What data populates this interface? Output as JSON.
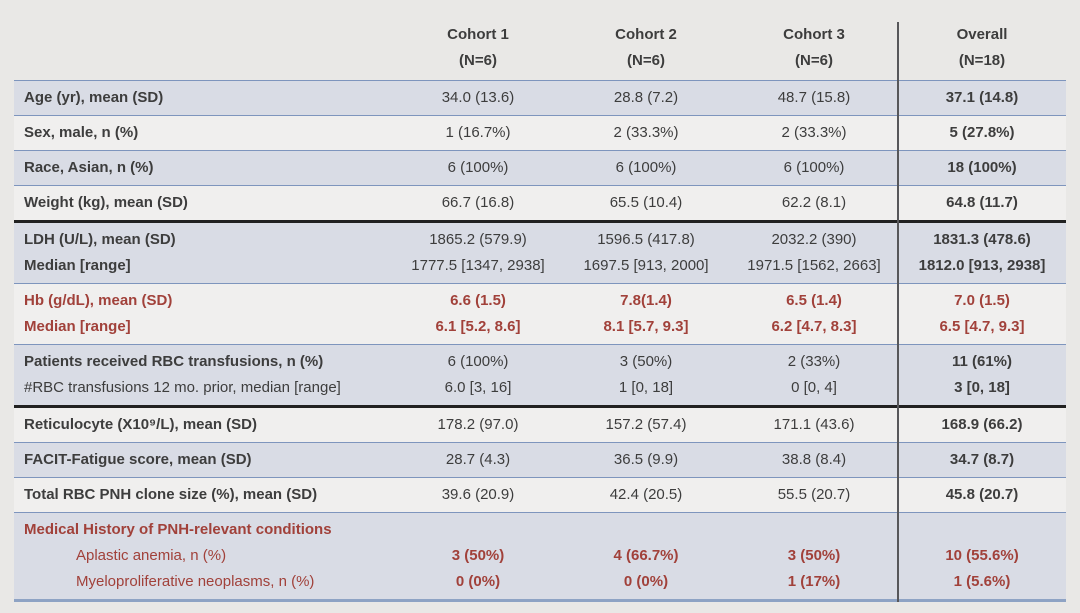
{
  "colors": {
    "page_background": "#e9e8e6",
    "shaded_row": "#d9dce5",
    "plain_row": "#f0efee",
    "thin_border": "#7e95bd",
    "thick_border": "#212121",
    "bottom_border": "#8ea3c4",
    "divider": "#57575a",
    "dark_text": "#3d3d3d",
    "red_text": "#a1413a"
  },
  "table": {
    "columns": [
      {
        "label": "Cohort 1",
        "sublabel": "(N=6)"
      },
      {
        "label": "Cohort 2",
        "sublabel": "(N=6)"
      },
      {
        "label": "Cohort 3",
        "sublabel": "(N=6)"
      },
      {
        "label": "Overall",
        "sublabel": "(N=18)"
      }
    ],
    "rows": [
      {
        "shaded": true,
        "red": false,
        "thick_top": false,
        "labels": [
          {
            "text": "Age (yr), mean (SD)",
            "bold": true,
            "indent": false
          }
        ],
        "cells": [
          [
            "34.0 (13.6)"
          ],
          [
            "28.8 (7.2)"
          ],
          [
            "48.7 (15.8)"
          ],
          [
            "37.1 (14.8)"
          ]
        ]
      },
      {
        "shaded": false,
        "red": false,
        "thick_top": false,
        "labels": [
          {
            "text": "Sex, male, n (%)",
            "bold": true,
            "indent": false
          }
        ],
        "cells": [
          [
            "1 (16.7%)"
          ],
          [
            "2 (33.3%)"
          ],
          [
            "2 (33.3%)"
          ],
          [
            "5 (27.8%)"
          ]
        ]
      },
      {
        "shaded": true,
        "red": false,
        "thick_top": false,
        "labels": [
          {
            "text": "Race, Asian, n (%)",
            "bold": true,
            "indent": false
          }
        ],
        "cells": [
          [
            "6 (100%)"
          ],
          [
            "6 (100%)"
          ],
          [
            "6 (100%)"
          ],
          [
            "18 (100%)"
          ]
        ]
      },
      {
        "shaded": false,
        "red": false,
        "thick_top": false,
        "labels": [
          {
            "text": "Weight (kg), mean (SD)",
            "bold": true,
            "indent": false
          }
        ],
        "cells": [
          [
            "66.7 (16.8)"
          ],
          [
            "65.5 (10.4)"
          ],
          [
            "62.2 (8.1)"
          ],
          [
            "64.8 (11.7)"
          ]
        ]
      },
      {
        "shaded": true,
        "red": false,
        "thick_top": true,
        "labels": [
          {
            "text": "LDH (U/L), mean (SD)",
            "bold": true,
            "indent": false
          },
          {
            "text": "Median [range]",
            "bold": true,
            "indent": false
          }
        ],
        "cells": [
          [
            "1865.2 (579.9)",
            "1777.5 [1347, 2938]"
          ],
          [
            "1596.5 (417.8)",
            "1697.5 [913, 2000]"
          ],
          [
            "2032.2 (390)",
            "1971.5 [1562, 2663]"
          ],
          [
            "1831.3 (478.6)",
            "1812.0 [913, 2938]"
          ]
        ]
      },
      {
        "shaded": false,
        "red": true,
        "thick_top": false,
        "labels": [
          {
            "text": "Hb (g/dL), mean (SD)",
            "bold": true,
            "indent": false
          },
          {
            "text": "Median [range]",
            "bold": true,
            "indent": false
          }
        ],
        "cells": [
          [
            "6.6 (1.5)",
            "6.1 [5.2, 8.6]"
          ],
          [
            "7.8(1.4)",
            "8.1 [5.7, 9.3]"
          ],
          [
            "6.5 (1.4)",
            "6.2 [4.7, 8.3]"
          ],
          [
            "7.0 (1.5)",
            "6.5 [4.7, 9.3]"
          ]
        ]
      },
      {
        "shaded": true,
        "red": false,
        "thick_top": false,
        "labels": [
          {
            "text": "Patients received RBC transfusions, n (%)",
            "bold": true,
            "indent": false
          },
          {
            "text": "#RBC transfusions 12 mo. prior, median [range]",
            "bold": false,
            "indent": false
          }
        ],
        "cells": [
          [
            "6 (100%)",
            "6.0 [3, 16]"
          ],
          [
            "3 (50%)",
            "1 [0, 18]"
          ],
          [
            "2 (33%)",
            "0 [0, 4]"
          ],
          [
            "11 (61%)",
            "3 [0, 18]"
          ]
        ]
      },
      {
        "shaded": false,
        "red": false,
        "thick_top": true,
        "labels": [
          {
            "text": "Reticulocyte (X10⁹/L), mean (SD)",
            "bold": true,
            "indent": false
          }
        ],
        "cells": [
          [
            "178.2 (97.0)"
          ],
          [
            "157.2 (57.4)"
          ],
          [
            "171.1 (43.6)"
          ],
          [
            "168.9 (66.2)"
          ]
        ]
      },
      {
        "shaded": true,
        "red": false,
        "thick_top": false,
        "labels": [
          {
            "text": "FACIT-Fatigue score, mean (SD)",
            "bold": true,
            "indent": false
          }
        ],
        "cells": [
          [
            "28.7 (4.3)"
          ],
          [
            "36.5 (9.9)"
          ],
          [
            "38.8 (8.4)"
          ],
          [
            "34.7 (8.7)"
          ]
        ]
      },
      {
        "shaded": false,
        "red": false,
        "thick_top": false,
        "labels": [
          {
            "text": "Total RBC PNH clone size (%), mean (SD)",
            "bold": true,
            "indent": false
          }
        ],
        "cells": [
          [
            "39.6 (20.9)"
          ],
          [
            "42.4 (20.5)"
          ],
          [
            "55.5 (20.7)"
          ],
          [
            "45.8 (20.7)"
          ]
        ]
      },
      {
        "shaded": true,
        "red": true,
        "thick_top": false,
        "labels": [
          {
            "text": "Medical History of PNH-relevant conditions",
            "bold": true,
            "indent": false
          },
          {
            "text": "Aplastic anemia, n (%)",
            "bold": false,
            "indent": true
          },
          {
            "text": "Myeloproliferative neoplasms, n (%)",
            "bold": false,
            "indent": true
          }
        ],
        "cells": [
          [
            "",
            "3 (50%)",
            "0 (0%)"
          ],
          [
            "",
            "4 (66.7%)",
            "0 (0%)"
          ],
          [
            "",
            "3 (50%)",
            "1 (17%)"
          ],
          [
            "",
            "10 (55.6%)",
            "1 (5.6%)"
          ]
        ]
      }
    ]
  }
}
